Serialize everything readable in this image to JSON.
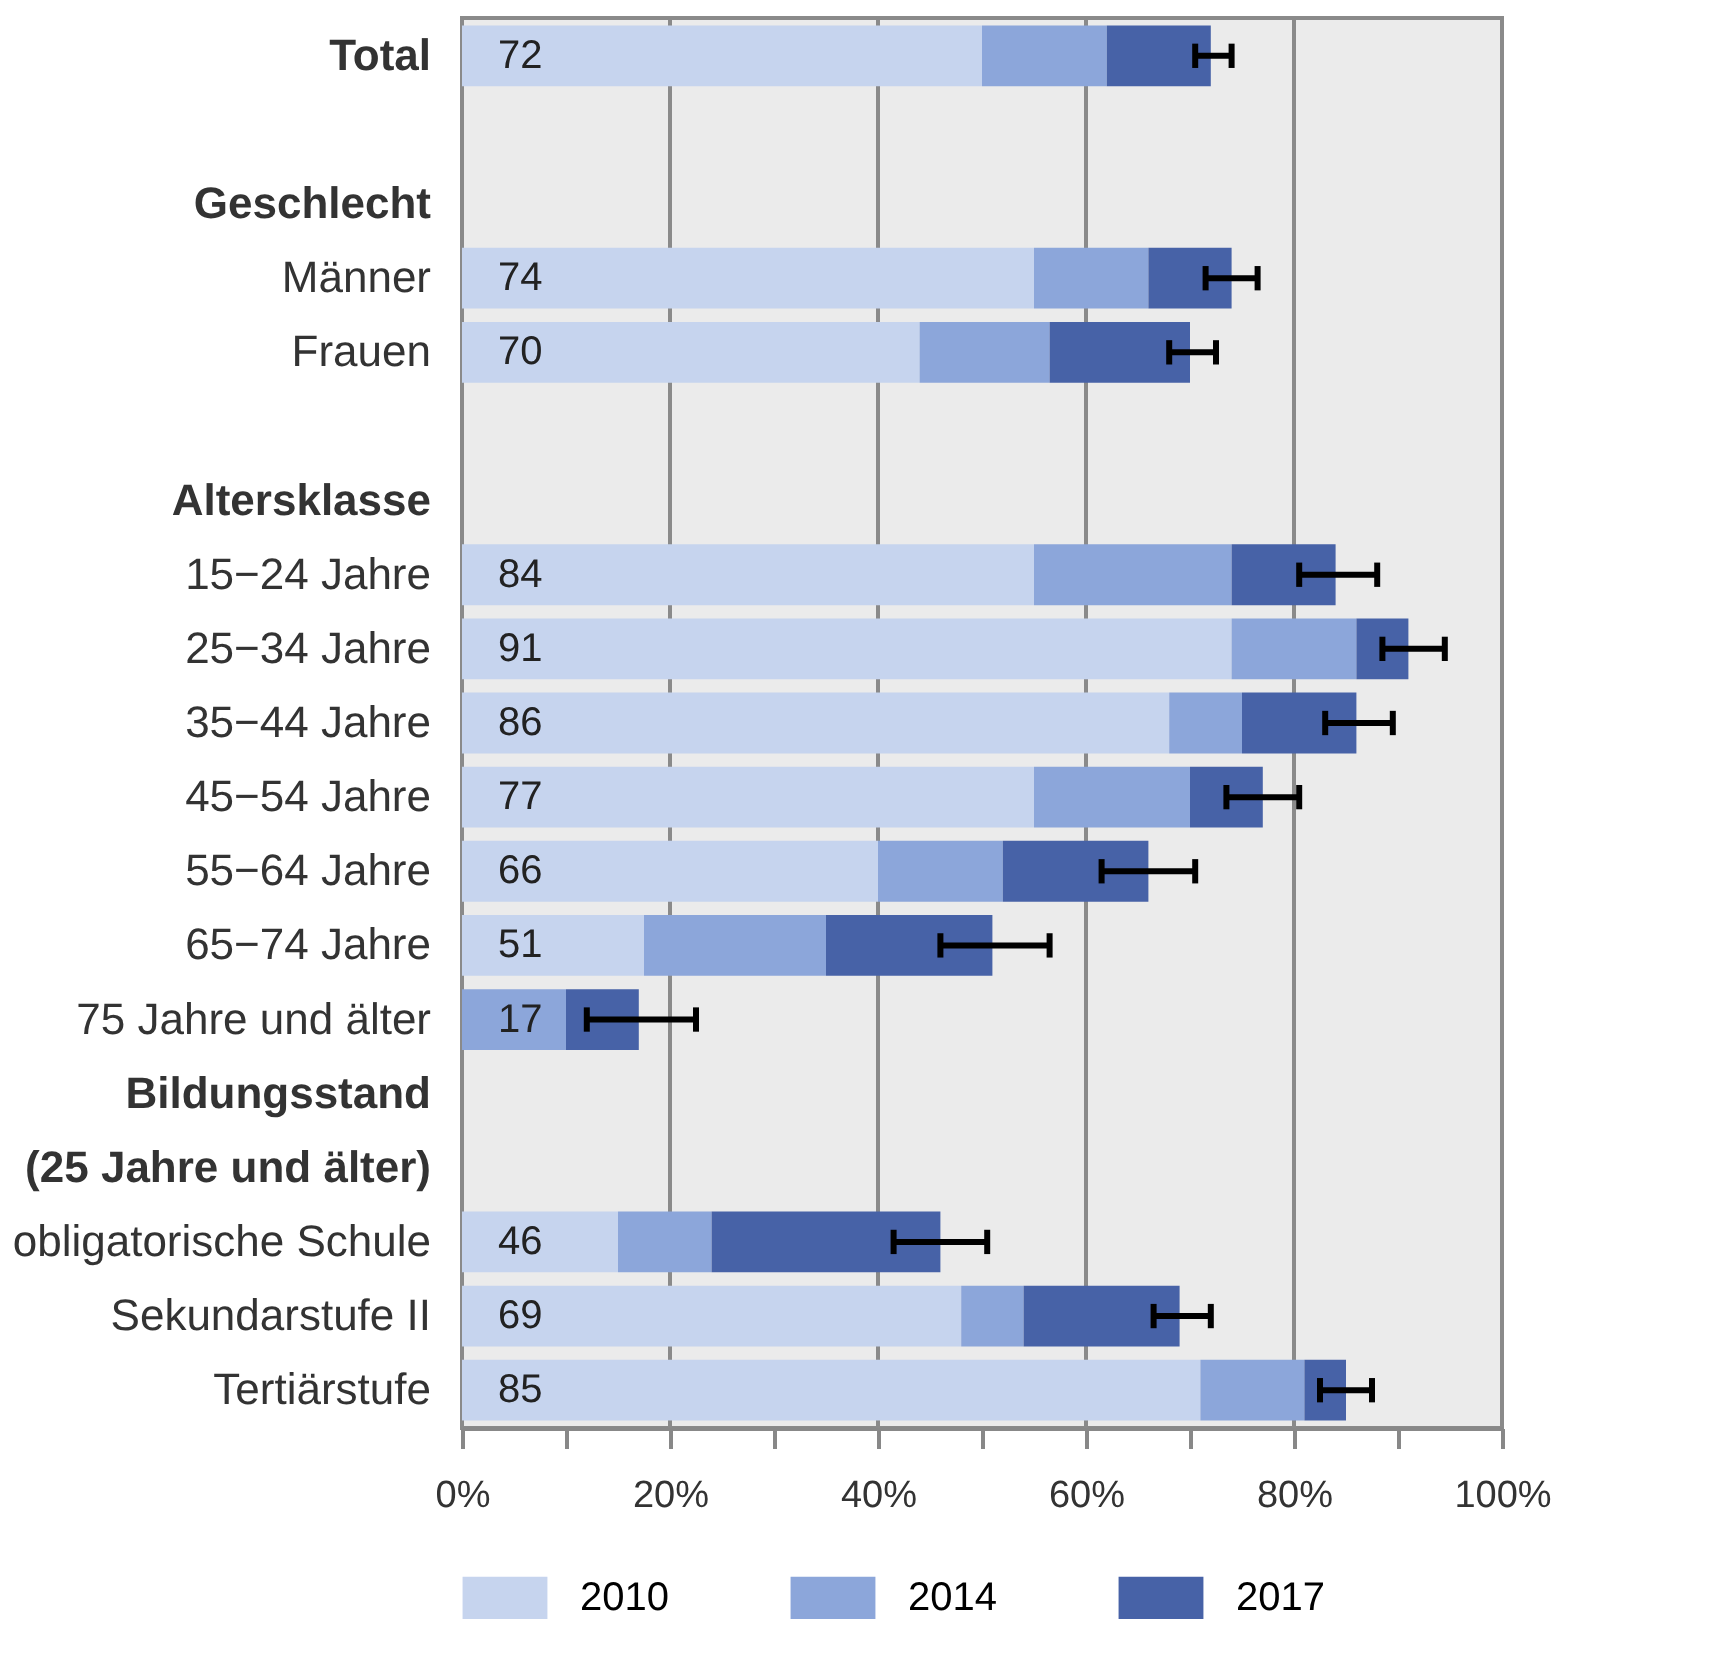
{
  "chart_data": {
    "type": "bar",
    "orientation": "horizontal",
    "stacked": true,
    "categories": [
      "Total",
      null,
      "Geschlecht",
      "Männer",
      "Frauen",
      null,
      "Altersklasse",
      "15−24 Jahre",
      "25−34 Jahre",
      "35−44 Jahre",
      "45−54 Jahre",
      "55−64 Jahre",
      "65−74 Jahre",
      "75 Jahre und älter",
      "Bildungsstand",
      "(25 Jahre und älter)",
      "obligatorische Schule",
      "Sekundarstufe II",
      "Tertiärstufe"
    ],
    "series": [
      {
        "name": "2010",
        "color": "#c6d4ee",
        "values": [
          50,
          null,
          null,
          55,
          44,
          null,
          null,
          55,
          74,
          68,
          55,
          40,
          17.5,
          null,
          null,
          null,
          15,
          48,
          71
        ]
      },
      {
        "name": "2014",
        "color": "#8ca6da",
        "values": [
          12,
          null,
          null,
          11,
          12.5,
          null,
          null,
          19,
          12,
          7,
          15,
          12,
          17.5,
          10,
          null,
          null,
          9,
          6,
          10
        ]
      },
      {
        "name": "2017",
        "color": "#4762a7",
        "values": [
          10,
          null,
          null,
          8,
          13.5,
          null,
          null,
          10,
          5,
          11,
          7,
          14,
          16,
          7,
          null,
          null,
          22,
          15,
          4
        ],
        "errors": [
          [
            70.5,
            74
          ],
          null,
          null,
          [
            71.5,
            76.5
          ],
          [
            68,
            72.5
          ],
          null,
          null,
          [
            80.5,
            88
          ],
          [
            88.5,
            94.5
          ],
          [
            83,
            89.5
          ],
          [
            73.5,
            80.5
          ],
          [
            61.5,
            70.5
          ],
          [
            46,
            56.5
          ],
          [
            12,
            22.5
          ],
          null,
          null,
          [
            41.5,
            50.5
          ],
          [
            66.5,
            72
          ],
          [
            82.5,
            87.5
          ]
        ]
      }
    ],
    "totals": [
      "72",
      null,
      null,
      "74",
      "70",
      null,
      null,
      "84",
      "91",
      "86",
      "77",
      "66",
      "51",
      "17",
      null,
      null,
      "46",
      "69",
      "85"
    ],
    "xlim": [
      0,
      100
    ],
    "xticks": [
      {
        "value": 0,
        "label": "0%"
      },
      {
        "value": 10,
        "label": null
      },
      {
        "value": 20,
        "label": "20%"
      },
      {
        "value": 30,
        "label": null
      },
      {
        "value": 40,
        "label": "40%"
      },
      {
        "value": 50,
        "label": null
      },
      {
        "value": 60,
        "label": "60%"
      },
      {
        "value": 70,
        "label": null
      },
      {
        "value": 80,
        "label": "80%"
      },
      {
        "value": 90,
        "label": null
      },
      {
        "value": 100,
        "label": "100%"
      }
    ],
    "grid": "x",
    "legend": "bottom"
  }
}
